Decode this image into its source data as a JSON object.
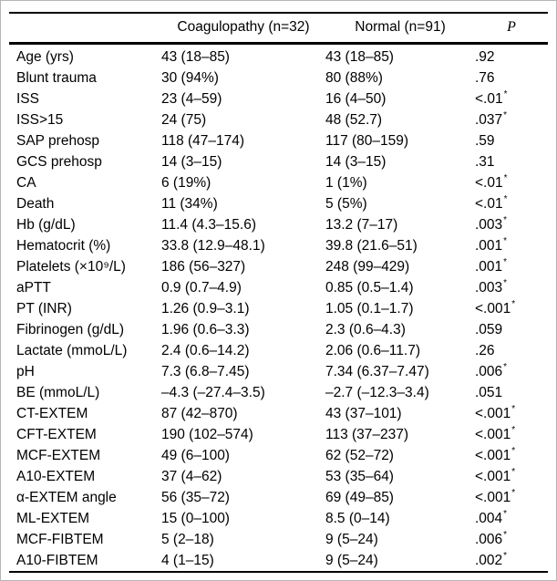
{
  "table": {
    "significance_marker": "*",
    "columns": [
      {
        "label": ""
      },
      {
        "label": "Coagulopathy (n=32)"
      },
      {
        "label": "Normal (n=91)"
      },
      {
        "label": "P"
      }
    ],
    "rows": [
      {
        "label": "Age (yrs)",
        "coagulopathy": "43 (18–85)",
        "normal": "43 (18–85)",
        "p": ".92",
        "significant": false
      },
      {
        "label": "Blunt trauma",
        "coagulopathy": "30 (94%)",
        "normal": "80 (88%)",
        "p": ".76",
        "significant": false
      },
      {
        "label": "ISS",
        "coagulopathy": "23 (4–59)",
        "normal": "16 (4–50)",
        "p": "<.01",
        "significant": true
      },
      {
        "label": "ISS>15",
        "coagulopathy": "24 (75)",
        "normal": "48 (52.7)",
        "p": ".037",
        "significant": true
      },
      {
        "label": "SAP prehosp",
        "coagulopathy": "118 (47–174)",
        "normal": "117 (80–159)",
        "p": ".59",
        "significant": false
      },
      {
        "label": "GCS prehosp",
        "coagulopathy": "14 (3–15)",
        "normal": "14 (3–15)",
        "p": ".31",
        "significant": false
      },
      {
        "label": "CA",
        "coagulopathy": "6 (19%)",
        "normal": "1 (1%)",
        "p": "<.01",
        "significant": true
      },
      {
        "label": "Death",
        "coagulopathy": "11 (34%)",
        "normal": "5 (5%)",
        "p": "<.01",
        "significant": true
      },
      {
        "label": "Hb (g/dL)",
        "coagulopathy": "11.4 (4.3–15.6)",
        "normal": "13.2 (7–17)",
        "p": ".003",
        "significant": true
      },
      {
        "label": "Hematocrit (%)",
        "coagulopathy": "33.8 (12.9–48.1)",
        "normal": "39.8 (21.6–51)",
        "p": ".001",
        "significant": true
      },
      {
        "label": "Platelets (×10⁹/L)",
        "coagulopathy": "186 (56–327)",
        "normal": "248 (99–429)",
        "p": ".001",
        "significant": true
      },
      {
        "label": "aPTT",
        "coagulopathy": "0.9 (0.7–4.9)",
        "normal": "0.85 (0.5–1.4)",
        "p": ".003",
        "significant": true
      },
      {
        "label": "PT (INR)",
        "coagulopathy": "1.26 (0.9–3.1)",
        "normal": "1.05 (0.1–1.7)",
        "p": "<.001",
        "significant": true
      },
      {
        "label": "Fibrinogen (g/dL)",
        "coagulopathy": "1.96 (0.6–3.3)",
        "normal": "2.3 (0.6–4.3)",
        "p": ".059",
        "significant": false
      },
      {
        "label": "Lactate (mmoL/L)",
        "coagulopathy": "2.4 (0.6–14.2)",
        "normal": "2.06 (0.6–11.7)",
        "p": ".26",
        "significant": false
      },
      {
        "label": "pH",
        "coagulopathy": "7.3 (6.8–7.45)",
        "normal": "7.34 (6.37–7.47)",
        "p": ".006",
        "significant": true
      },
      {
        "label": "BE (mmoL/L)",
        "coagulopathy": "–4.3 (–27.4–3.5)",
        "normal": "–2.7 (–12.3–3.4)",
        "p": ".051",
        "significant": false
      },
      {
        "label": "CT-EXTEM",
        "coagulopathy": "87 (42–870)",
        "normal": "43 (37–101)",
        "p": "<.001",
        "significant": true
      },
      {
        "label": "CFT-EXTEM",
        "coagulopathy": "190 (102–574)",
        "normal": "113 (37–237)",
        "p": "<.001",
        "significant": true
      },
      {
        "label": "MCF-EXTEM",
        "coagulopathy": "49 (6–100)",
        "normal": "62 (52–72)",
        "p": "<.001",
        "significant": true
      },
      {
        "label": "A10-EXTEM",
        "coagulopathy": "37 (4–62)",
        "normal": "53 (35–64)",
        "p": "<.001",
        "significant": true
      },
      {
        "label": "α-EXTEM angle",
        "coagulopathy": "56 (35–72)",
        "normal": "69 (49–85)",
        "p": "<.001",
        "significant": true
      },
      {
        "label": "ML-EXTEM",
        "coagulopathy": "15 (0–100)",
        "normal": "8.5 (0–14)",
        "p": ".004",
        "significant": true
      },
      {
        "label": "MCF-FIBTEM",
        "coagulopathy": "5 (2–18)",
        "normal": "9 (5–24)",
        "p": ".006",
        "significant": true
      },
      {
        "label": "A10-FIBTEM",
        "coagulopathy": "4 (1–15)",
        "normal": "9 (5–24)",
        "p": ".002",
        "significant": true
      }
    ]
  }
}
